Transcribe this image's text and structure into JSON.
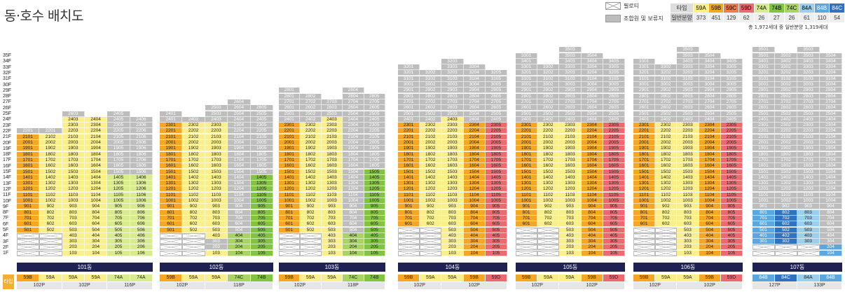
{
  "title": "동·호수 배치도",
  "legend": {
    "pilotis": "필로티",
    "reserve": "조합원 및 보류지"
  },
  "type_table": {
    "header_label": "타입",
    "count_label": "일반분양",
    "types": [
      "59A",
      "59B",
      "59C",
      "59D",
      "74A",
      "74B",
      "74C",
      "84A",
      "84B",
      "84C"
    ],
    "counts": [
      "373",
      "451",
      "129",
      "62",
      "26",
      "27",
      "26",
      "61",
      "110",
      "54"
    ]
  },
  "total": "총 1,972세대 중 일반분양 1,319세대",
  "colors": {
    "59A": "#fbef8c",
    "59B": "#f5a623",
    "59C": "#f07c4a",
    "59D": "#ec6a6f",
    "74A": "#d8ec8f",
    "74B": "#82c341",
    "74C": "#a9d464",
    "84A": "#9ccfe9",
    "84B": "#5aa8df",
    "84C": "#2f73c0",
    "gray": "#bdbdbd"
  },
  "floor_labels": [
    "35F",
    "34F",
    "33F",
    "32F",
    "31F",
    "30F",
    "29F",
    "28F",
    "27F",
    "26F",
    "25F",
    "24F",
    "23F",
    "22F",
    "21F",
    "20F",
    "19F",
    "18F",
    "17F",
    "16F",
    "15F",
    "14F",
    "13F",
    "12F",
    "11F",
    "10F",
    "9F",
    "8F",
    "7F",
    "6F",
    "5F",
    "4F",
    "3F",
    "2F",
    "1F"
  ],
  "type_row_label": "타입",
  "buildings": [
    {
      "name": "101동",
      "x": 24,
      "w": 194,
      "types": [
        "59B",
        "59A",
        "59A",
        "59A",
        "74A",
        "74A"
      ],
      "sizes": [
        {
          "label": "102P",
          "span": 2
        },
        {
          "label": "102P",
          "span": 2
        },
        {
          "label": "116P",
          "span": 2
        }
      ],
      "cols": [
        {
          "top": 21,
          "pil": 5,
          "hdr": "2201",
          "nontop": 0,
          "g": [],
          "c": "59B"
        },
        {
          "top": 21,
          "pil": 5,
          "hdr": "2201",
          "g": [],
          "c": "59A"
        },
        {
          "top": 24,
          "pil": 1,
          "hdr": "2603",
          "g": [],
          "c": "59A"
        },
        {
          "top": 24,
          "pil": 1,
          "g": [],
          "c": "59A",
          "y": [
            24,
            23
          ]
        },
        {
          "top": 24,
          "pil": 1,
          "hdr": "2405",
          "g": [
            24,
            23,
            22,
            21,
            20,
            19,
            18,
            17,
            16,
            15
          ],
          "c": "74A"
        },
        {
          "top": 24,
          "pil": 1,
          "g": [
            24,
            23,
            22,
            21,
            20,
            19,
            18,
            17,
            16,
            15
          ],
          "c": "74A"
        }
      ]
    },
    {
      "name": "102동",
      "x": 228,
      "w": 162,
      "types": [
        "59B",
        "59A",
        "59A",
        "74C",
        "74B"
      ],
      "sizes": [
        {
          "label": "102P",
          "span": 2
        },
        {
          "label": "118P",
          "span": 3
        }
      ],
      "cols": [
        {
          "top": 24,
          "pil": 5,
          "hdr": "2401",
          "g": [
            24
          ],
          "c": "59B"
        },
        {
          "top": 24,
          "pil": 5,
          "g": [
            24
          ],
          "c": "59A"
        },
        {
          "top": 25,
          "pil": 1,
          "hdr": "2503",
          "g": [
            25,
            24,
            3,
            2
          ],
          "c": "59A"
        },
        {
          "top": 26,
          "pil": 1,
          "hdr": "2604",
          "g": [
            26,
            25,
            24,
            23,
            22,
            21,
            20,
            19,
            18,
            17,
            16,
            15,
            14,
            13,
            12,
            11,
            10,
            9,
            8,
            7,
            6,
            5
          ],
          "c": "74C"
        },
        {
          "top": 26,
          "pil": 1,
          "g": [
            26,
            25,
            24,
            23,
            22,
            21,
            20,
            19,
            18,
            17,
            16,
            15
          ],
          "c": "74B"
        }
      ]
    },
    {
      "name": "103동",
      "x": 398,
      "w": 152,
      "types": [
        "59B",
        "59A",
        "59A",
        "74C",
        "74B"
      ],
      "sizes": [
        {
          "label": "102P",
          "span": 2
        },
        {
          "label": "118P",
          "span": 3
        }
      ],
      "cols": [
        {
          "top": 28,
          "pil": 5,
          "hdr": "2801",
          "g": [
            28,
            27,
            26,
            25,
            24
          ],
          "c": "59B"
        },
        {
          "top": 28,
          "pil": 5,
          "g": [
            28,
            27,
            26,
            25,
            24
          ],
          "c": "59A"
        },
        {
          "top": 27,
          "pil": 1,
          "g": [
            27,
            26,
            25
          ],
          "c": "59A"
        },
        {
          "top": 28,
          "pil": 1,
          "hdr": "2804",
          "g": [
            28,
            27,
            26,
            25,
            24,
            23,
            22,
            21,
            20,
            19,
            18,
            17,
            16,
            15,
            14,
            13,
            12,
            11,
            10,
            9,
            8,
            7,
            6,
            5
          ],
          "c": "74C"
        },
        {
          "top": 28,
          "pil": 1,
          "g": [
            28,
            27,
            26,
            25,
            24,
            23,
            22,
            21,
            20,
            19,
            18,
            17,
            16
          ],
          "c": "74B"
        }
      ]
    },
    {
      "name": "104동",
      "x": 568,
      "w": 156,
      "types": [
        "59B",
        "59A",
        "59A",
        "59B",
        "59D"
      ],
      "sizes": [
        {
          "label": "102P",
          "span": 2
        },
        {
          "label": "102P",
          "span": 3
        }
      ],
      "cols": [
        {
          "top": 32,
          "pil": 6,
          "hdr": "3201",
          "g": [
            32,
            31,
            30,
            29,
            28,
            27,
            26,
            25,
            24
          ],
          "c": "59B"
        },
        {
          "top": 32,
          "pil": 6,
          "g": [
            32,
            31,
            30,
            29,
            28,
            27,
            26,
            25,
            24
          ],
          "c": "59A"
        },
        {
          "top": 33,
          "pil": 1,
          "hdr": "3203",
          "g": [
            33,
            32,
            31,
            30,
            29,
            28,
            27,
            26,
            25
          ],
          "c": "59A"
        },
        {
          "top": 33,
          "pil": 1,
          "g": [
            33,
            32,
            31,
            30,
            29,
            28,
            27,
            26,
            25,
            24
          ],
          "c": "59B"
        },
        {
          "top": 32,
          "pil": 1,
          "g": [
            32,
            31,
            30,
            29,
            28,
            27,
            26,
            25,
            24
          ],
          "c": "59D"
        }
      ]
    },
    {
      "name": "105동",
      "x": 736,
      "w": 156,
      "types": [
        "59B",
        "59A",
        "59A",
        "59B",
        "59D"
      ],
      "sizes": [
        {
          "label": "102P",
          "span": 2
        },
        {
          "label": "102P",
          "span": 3
        }
      ],
      "cols": [
        {
          "top": 34,
          "pil": 6,
          "hdr": "3301",
          "g": [
            34,
            33,
            32,
            31,
            30,
            29,
            28,
            27,
            26,
            25,
            24
          ],
          "c": "59B"
        },
        {
          "top": 33,
          "pil": 6,
          "g": [
            33,
            32,
            31,
            30,
            29,
            28,
            27,
            26,
            25,
            24
          ],
          "c": "59A"
        },
        {
          "top": 35,
          "pil": 1,
          "hdr": "3503",
          "g": [
            35,
            34,
            33,
            32,
            31,
            30,
            29,
            28,
            27,
            26,
            25,
            24
          ],
          "c": "59A"
        },
        {
          "top": 35,
          "pil": 1,
          "g": [
            35,
            34,
            33,
            32,
            31,
            30,
            29,
            28,
            27,
            26,
            25,
            24
          ],
          "c": "59B"
        },
        {
          "top": 34,
          "pil": 1,
          "g": [
            34,
            33,
            32,
            31,
            30,
            29,
            28,
            27,
            26,
            25,
            24
          ],
          "c": "59D"
        }
      ]
    },
    {
      "name": "106동",
      "x": 904,
      "w": 156,
      "types": [
        "59B",
        "59A",
        "59A",
        "59B",
        "59D"
      ],
      "sizes": [
        {
          "label": "102P",
          "span": 2
        },
        {
          "label": "102P",
          "span": 3
        }
      ],
      "cols": [
        {
          "top": 33,
          "pil": 6,
          "hdr": "3301",
          "g": [
            33,
            32,
            31,
            30,
            29,
            28,
            27,
            26,
            25,
            24
          ],
          "c": "59B"
        },
        {
          "top": 33,
          "pil": 6,
          "g": [
            33,
            32,
            31,
            30,
            29,
            28,
            27,
            26,
            25,
            24
          ],
          "c": "59A"
        },
        {
          "top": 35,
          "pil": 1,
          "hdr": "3503",
          "g": [
            35,
            34,
            33,
            32,
            31,
            30,
            29,
            28,
            27,
            26,
            25,
            24
          ],
          "c": "59A"
        },
        {
          "top": 35,
          "pil": 1,
          "g": [
            35,
            34,
            33,
            32,
            31,
            30,
            29,
            28,
            27,
            26,
            25,
            24
          ],
          "c": "59B"
        },
        {
          "top": 34,
          "pil": 1,
          "g": [
            34,
            33,
            32,
            31,
            30,
            29,
            28,
            27,
            26,
            25,
            24
          ],
          "c": "59D"
        }
      ]
    },
    {
      "name": "107동",
      "x": 1074,
      "w": 128,
      "types": [
        "84B",
        "84C",
        "84A",
        "84B"
      ],
      "sizes": [
        {
          "label": "127P",
          "span": 2
        },
        {
          "label": "133P",
          "span": 2
        }
      ],
      "cols": [
        {
          "top": 35,
          "pil": 3,
          "hdr": "3501",
          "g": [
            35,
            34,
            33,
            32,
            31,
            30,
            29,
            28,
            27,
            26,
            25,
            24,
            23,
            22,
            21,
            20,
            19,
            18,
            17,
            16,
            15,
            14,
            13,
            12,
            11,
            10,
            9
          ],
          "c": "84B"
        },
        {
          "top": 35,
          "pil": 3,
          "g": [
            35,
            34,
            33,
            32,
            31,
            30,
            29,
            28,
            27,
            26,
            25,
            24,
            23,
            22,
            21,
            20,
            19,
            18,
            17,
            16,
            15,
            14,
            13,
            12,
            11,
            10,
            9
          ],
          "c": "84C"
        },
        {
          "top": 35,
          "pil": 3,
          "hdr": "3503",
          "g": [
            35,
            34,
            33,
            32,
            31,
            30,
            29,
            28,
            27,
            26,
            25,
            24,
            23,
            22,
            21,
            20,
            19,
            18,
            17,
            16,
            15,
            14,
            13,
            12,
            11,
            10,
            9
          ],
          "c": "84A"
        },
        {
          "top": 35,
          "pil": 1,
          "g": [
            35,
            34,
            33,
            32,
            31,
            30,
            29,
            28,
            27,
            26,
            25,
            24,
            23,
            22,
            21,
            20,
            19,
            18,
            17,
            16,
            15,
            14,
            13,
            12,
            11,
            10,
            9,
            8,
            7,
            6,
            5,
            4,
            3
          ],
          "c": "84B"
        }
      ]
    }
  ]
}
